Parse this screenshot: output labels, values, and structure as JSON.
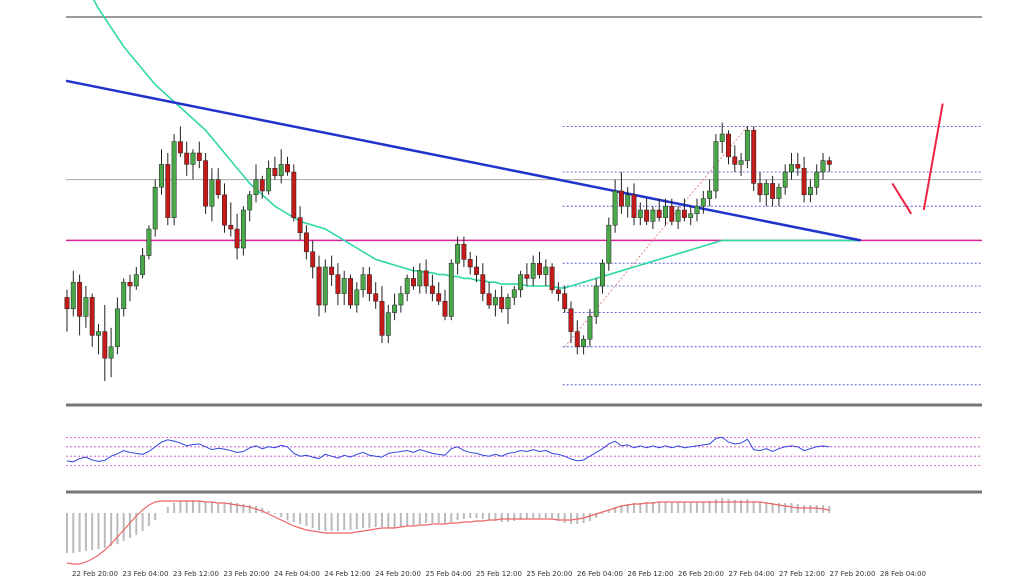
{
  "chart_data": {
    "type": "candlestick",
    "x_tick_labels": [
      "22 Feb 20:00",
      "23 Feb 04:00",
      "23 Feb 12:00",
      "23 Feb 20:00",
      "24 Feb 04:00",
      "24 Feb 12:00",
      "24 Feb 20:00",
      "25 Feb 04:00",
      "25 Feb 12:00",
      "25 Feb 20:00",
      "26 Feb 04:00",
      "26 Feb 12:00",
      "26 Feb 20:00",
      "27 Feb 04:00",
      "27 Feb 12:00",
      "27 Feb 20:00",
      "28 Feb 04:00"
    ],
    "price_scale": {
      "ylim": [
        0,
        100
      ]
    },
    "candles": [
      {
        "o": 27,
        "h": 29,
        "l": 18,
        "c": 24
      },
      {
        "o": 24,
        "h": 34,
        "l": 22,
        "c": 31
      },
      {
        "o": 31,
        "h": 33,
        "l": 17,
        "c": 22
      },
      {
        "o": 22,
        "h": 30,
        "l": 19,
        "c": 27
      },
      {
        "o": 27,
        "h": 28,
        "l": 14,
        "c": 17
      },
      {
        "o": 17,
        "h": 20,
        "l": 12,
        "c": 18
      },
      {
        "o": 18,
        "h": 25,
        "l": 5,
        "c": 11
      },
      {
        "o": 11,
        "h": 19,
        "l": 6,
        "c": 14
      },
      {
        "o": 14,
        "h": 27,
        "l": 12,
        "c": 24
      },
      {
        "o": 24,
        "h": 32,
        "l": 22,
        "c": 31
      },
      {
        "o": 31,
        "h": 33,
        "l": 26,
        "c": 30
      },
      {
        "o": 30,
        "h": 35,
        "l": 29,
        "c": 33
      },
      {
        "o": 33,
        "h": 40,
        "l": 32,
        "c": 38
      },
      {
        "o": 38,
        "h": 46,
        "l": 37,
        "c": 45
      },
      {
        "o": 45,
        "h": 58,
        "l": 43,
        "c": 56
      },
      {
        "o": 56,
        "h": 66,
        "l": 54,
        "c": 62
      },
      {
        "o": 62,
        "h": 65,
        "l": 46,
        "c": 48
      },
      {
        "o": 48,
        "h": 70,
        "l": 46,
        "c": 68
      },
      {
        "o": 68,
        "h": 72,
        "l": 64,
        "c": 65
      },
      {
        "o": 65,
        "h": 68,
        "l": 59,
        "c": 62
      },
      {
        "o": 62,
        "h": 66,
        "l": 58,
        "c": 65
      },
      {
        "o": 65,
        "h": 68,
        "l": 61,
        "c": 63
      },
      {
        "o": 63,
        "h": 65,
        "l": 49,
        "c": 51
      },
      {
        "o": 51,
        "h": 61,
        "l": 47,
        "c": 58
      },
      {
        "o": 58,
        "h": 61,
        "l": 53,
        "c": 54
      },
      {
        "o": 54,
        "h": 57,
        "l": 44,
        "c": 46
      },
      {
        "o": 46,
        "h": 52,
        "l": 43,
        "c": 45
      },
      {
        "o": 45,
        "h": 49,
        "l": 37,
        "c": 40
      },
      {
        "o": 40,
        "h": 51,
        "l": 38,
        "c": 50
      },
      {
        "o": 50,
        "h": 55,
        "l": 47,
        "c": 54
      },
      {
        "o": 54,
        "h": 62,
        "l": 52,
        "c": 58
      },
      {
        "o": 58,
        "h": 59,
        "l": 53,
        "c": 55
      },
      {
        "o": 55,
        "h": 63,
        "l": 54,
        "c": 61
      },
      {
        "o": 61,
        "h": 64,
        "l": 58,
        "c": 59
      },
      {
        "o": 59,
        "h": 66,
        "l": 57,
        "c": 62
      },
      {
        "o": 62,
        "h": 64,
        "l": 59,
        "c": 60
      },
      {
        "o": 60,
        "h": 62,
        "l": 47,
        "c": 48
      },
      {
        "o": 48,
        "h": 51,
        "l": 42,
        "c": 44
      },
      {
        "o": 44,
        "h": 46,
        "l": 37,
        "c": 39
      },
      {
        "o": 39,
        "h": 42,
        "l": 32,
        "c": 35
      },
      {
        "o": 35,
        "h": 38,
        "l": 22,
        "c": 25
      },
      {
        "o": 25,
        "h": 37,
        "l": 23,
        "c": 35
      },
      {
        "o": 35,
        "h": 38,
        "l": 30,
        "c": 33
      },
      {
        "o": 33,
        "h": 36,
        "l": 25,
        "c": 28
      },
      {
        "o": 28,
        "h": 34,
        "l": 25,
        "c": 32
      },
      {
        "o": 32,
        "h": 33,
        "l": 24,
        "c": 25
      },
      {
        "o": 25,
        "h": 31,
        "l": 23,
        "c": 29
      },
      {
        "o": 29,
        "h": 35,
        "l": 27,
        "c": 33
      },
      {
        "o": 33,
        "h": 35,
        "l": 26,
        "c": 28
      },
      {
        "o": 28,
        "h": 31,
        "l": 24,
        "c": 26
      },
      {
        "o": 26,
        "h": 30,
        "l": 15,
        "c": 17
      },
      {
        "o": 17,
        "h": 25,
        "l": 15,
        "c": 23
      },
      {
        "o": 23,
        "h": 28,
        "l": 21,
        "c": 25
      },
      {
        "o": 25,
        "h": 30,
        "l": 23,
        "c": 28
      },
      {
        "o": 28,
        "h": 33,
        "l": 26,
        "c": 32
      },
      {
        "o": 32,
        "h": 35,
        "l": 29,
        "c": 30
      },
      {
        "o": 30,
        "h": 36,
        "l": 28,
        "c": 34
      },
      {
        "o": 34,
        "h": 37,
        "l": 28,
        "c": 30
      },
      {
        "o": 30,
        "h": 33,
        "l": 26,
        "c": 28
      },
      {
        "o": 28,
        "h": 31,
        "l": 25,
        "c": 26
      },
      {
        "o": 26,
        "h": 29,
        "l": 21,
        "c": 22
      },
      {
        "o": 22,
        "h": 37,
        "l": 21,
        "c": 36
      },
      {
        "o": 36,
        "h": 43,
        "l": 33,
        "c": 41
      },
      {
        "o": 41,
        "h": 43,
        "l": 35,
        "c": 37
      },
      {
        "o": 37,
        "h": 39,
        "l": 33,
        "c": 35
      },
      {
        "o": 35,
        "h": 38,
        "l": 31,
        "c": 33
      },
      {
        "o": 33,
        "h": 36,
        "l": 26,
        "c": 28
      },
      {
        "o": 28,
        "h": 31,
        "l": 24,
        "c": 25
      },
      {
        "o": 25,
        "h": 29,
        "l": 22,
        "c": 27
      },
      {
        "o": 27,
        "h": 30,
        "l": 23,
        "c": 24
      },
      {
        "o": 24,
        "h": 28,
        "l": 20,
        "c": 27
      },
      {
        "o": 27,
        "h": 30,
        "l": 25,
        "c": 29
      },
      {
        "o": 29,
        "h": 34,
        "l": 27,
        "c": 33
      },
      {
        "o": 33,
        "h": 36,
        "l": 30,
        "c": 32
      },
      {
        "o": 32,
        "h": 38,
        "l": 30,
        "c": 36
      },
      {
        "o": 36,
        "h": 39,
        "l": 32,
        "c": 33
      },
      {
        "o": 33,
        "h": 37,
        "l": 30,
        "c": 35
      },
      {
        "o": 35,
        "h": 36,
        "l": 28,
        "c": 29
      },
      {
        "o": 29,
        "h": 31,
        "l": 26,
        "c": 28
      },
      {
        "o": 28,
        "h": 30,
        "l": 23,
        "c": 24
      },
      {
        "o": 24,
        "h": 26,
        "l": 15,
        "c": 18
      },
      {
        "o": 18,
        "h": 21,
        "l": 12,
        "c": 14
      },
      {
        "o": 14,
        "h": 17,
        "l": 12,
        "c": 16
      },
      {
        "o": 16,
        "h": 24,
        "l": 14,
        "c": 22
      },
      {
        "o": 22,
        "h": 32,
        "l": 20,
        "c": 30
      },
      {
        "o": 30,
        "h": 37,
        "l": 28,
        "c": 36
      },
      {
        "o": 36,
        "h": 48,
        "l": 34,
        "c": 46
      },
      {
        "o": 46,
        "h": 58,
        "l": 44,
        "c": 55
      },
      {
        "o": 55,
        "h": 60,
        "l": 49,
        "c": 51
      },
      {
        "o": 51,
        "h": 56,
        "l": 48,
        "c": 54
      },
      {
        "o": 54,
        "h": 57,
        "l": 46,
        "c": 48
      },
      {
        "o": 48,
        "h": 52,
        "l": 46,
        "c": 50
      },
      {
        "o": 50,
        "h": 53,
        "l": 46,
        "c": 47
      },
      {
        "o": 47,
        "h": 51,
        "l": 45,
        "c": 50
      },
      {
        "o": 50,
        "h": 53,
        "l": 47,
        "c": 48
      },
      {
        "o": 48,
        "h": 53,
        "l": 46,
        "c": 51
      },
      {
        "o": 51,
        "h": 53,
        "l": 46,
        "c": 47
      },
      {
        "o": 47,
        "h": 51,
        "l": 45,
        "c": 50
      },
      {
        "o": 50,
        "h": 53,
        "l": 47,
        "c": 48
      },
      {
        "o": 48,
        "h": 51,
        "l": 46,
        "c": 49
      },
      {
        "o": 49,
        "h": 53,
        "l": 47,
        "c": 51
      },
      {
        "o": 51,
        "h": 55,
        "l": 49,
        "c": 53
      },
      {
        "o": 53,
        "h": 58,
        "l": 51,
        "c": 55
      },
      {
        "o": 55,
        "h": 70,
        "l": 53,
        "c": 68
      },
      {
        "o": 68,
        "h": 73,
        "l": 65,
        "c": 70
      },
      {
        "o": 70,
        "h": 71,
        "l": 62,
        "c": 64
      },
      {
        "o": 64,
        "h": 67,
        "l": 60,
        "c": 62
      },
      {
        "o": 62,
        "h": 65,
        "l": 59,
        "c": 63
      },
      {
        "o": 63,
        "h": 72,
        "l": 61,
        "c": 71
      },
      {
        "o": 71,
        "h": 72,
        "l": 55,
        "c": 57
      },
      {
        "o": 57,
        "h": 60,
        "l": 52,
        "c": 54
      },
      {
        "o": 54,
        "h": 58,
        "l": 51,
        "c": 57
      },
      {
        "o": 57,
        "h": 59,
        "l": 51,
        "c": 53
      },
      {
        "o": 53,
        "h": 57,
        "l": 51,
        "c": 56
      },
      {
        "o": 56,
        "h": 62,
        "l": 54,
        "c": 60
      },
      {
        "o": 60,
        "h": 65,
        "l": 58,
        "c": 62
      },
      {
        "o": 62,
        "h": 65,
        "l": 59,
        "c": 61
      },
      {
        "o": 61,
        "h": 64,
        "l": 52,
        "c": 54
      },
      {
        "o": 54,
        "h": 58,
        "l": 52,
        "c": 56
      },
      {
        "o": 56,
        "h": 62,
        "l": 54,
        "c": 60
      },
      {
        "o": 60,
        "h": 65,
        "l": 58,
        "c": 63
      },
      {
        "o": 63,
        "h": 64,
        "l": 60,
        "c": 62
      }
    ],
    "trendline_blue": {
      "from": {
        "index": 0,
        "value": 84
      },
      "to": {
        "index": 126,
        "value": 42
      },
      "color": "#2233cc"
    },
    "horizontal_line_magenta": {
      "value": 42,
      "color": "#dd2299"
    },
    "horizontal_line_gray": {
      "value": 58,
      "color": "#aaaaaa"
    },
    "fib_dotted_levels": {
      "start_index": 79,
      "values": [
        72,
        60,
        51,
        36,
        30,
        23,
        14,
        4
      ],
      "color": "#3344cc"
    },
    "fib_connector_dotted": {
      "from": {
        "index": 79,
        "value": 14
      },
      "to": {
        "index": 108,
        "value": 72
      },
      "color": "#e08a8a"
    },
    "moving_average": {
      "color": "#30d8a8",
      "values": [
        118,
        115,
        112,
        109,
        106,
        103,
        100.5,
        98,
        95.5,
        93,
        91,
        89,
        87,
        85,
        83,
        81.5,
        80,
        78.5,
        77,
        75.5,
        74,
        72.5,
        71,
        69,
        67,
        65,
        63,
        61,
        59,
        57,
        55.5,
        54,
        52.5,
        51,
        50,
        49,
        48,
        47,
        46.5,
        46,
        45.5,
        45,
        44,
        43,
        42,
        41,
        40,
        39,
        38,
        37,
        36.5,
        36,
        35.5,
        35,
        34.5,
        34,
        34,
        33.5,
        33.5,
        33,
        33,
        32.5,
        32.5,
        32,
        32,
        31.5,
        31.5,
        31,
        31,
        30.5,
        30.5,
        30.5,
        30.5,
        30,
        30,
        30,
        30,
        30,
        29.5,
        29.5,
        30,
        30.5,
        31,
        31.5,
        32,
        32.5,
        33,
        33.5,
        34,
        34.5,
        35,
        35.5,
        36,
        36.5,
        37,
        37.5,
        38,
        38.5,
        39,
        39.5,
        40,
        40.5,
        41,
        41.5,
        42,
        42,
        42,
        42,
        42,
        42,
        42,
        42,
        42,
        42,
        42,
        42,
        42,
        42,
        42,
        42,
        42,
        42,
        42,
        42,
        42,
        42,
        42
      ]
    },
    "projection_lines": {
      "color": "#ee2244",
      "segments": [
        [
          {
            "index": 131,
            "value": 57
          },
          {
            "index": 134,
            "value": 49
          }
        ],
        [
          {
            "index": 136,
            "value": 50
          },
          {
            "index": 139,
            "value": 78
          }
        ]
      ]
    },
    "rsi": {
      "ylim": [
        0,
        100
      ],
      "dotted_levels": [
        80,
        60,
        40,
        20
      ],
      "level_color": "#cc44cc",
      "line_color": "#3344dd",
      "values": [
        30,
        28,
        35,
        38,
        32,
        29,
        31,
        40,
        45,
        52,
        48,
        46,
        44,
        50,
        60,
        70,
        75,
        72,
        68,
        62,
        65,
        66,
        60,
        54,
        57,
        55,
        52,
        48,
        50,
        58,
        62,
        56,
        60,
        58,
        63,
        60,
        46,
        40,
        42,
        38,
        35,
        44,
        40,
        36,
        42,
        38,
        44,
        48,
        42,
        40,
        38,
        46,
        48,
        50,
        52,
        48,
        54,
        50,
        46,
        44,
        42,
        56,
        60,
        52,
        48,
        46,
        42,
        40,
        44,
        40,
        46,
        48,
        52,
        50,
        54,
        50,
        52,
        46,
        44,
        40,
        34,
        30,
        32,
        40,
        48,
        56,
        66,
        72,
        62,
        64,
        58,
        62,
        58,
        62,
        58,
        62,
        58,
        62,
        58,
        60,
        62,
        64,
        66,
        78,
        80,
        70,
        66,
        68,
        76,
        54,
        52,
        56,
        50,
        56,
        60,
        62,
        60,
        52,
        56,
        60,
        62,
        60
      ]
    },
    "macd": {
      "ylim": [
        -100,
        100
      ],
      "histogram_color": "#bbbbbb",
      "signal_color": "#ee6666",
      "histogram": [
        -80,
        -80,
        -78,
        -76,
        -74,
        -72,
        -70,
        -66,
        -62,
        -56,
        -50,
        -44,
        -36,
        -26,
        -14,
        0,
        12,
        20,
        24,
        26,
        26,
        24,
        22,
        22,
        20,
        20,
        22,
        20,
        18,
        16,
        14,
        10,
        4,
        -2,
        -8,
        -14,
        -18,
        -22,
        -26,
        -30,
        -34,
        -36,
        -36,
        -36,
        -34,
        -34,
        -32,
        -30,
        -30,
        -28,
        -28,
        -30,
        -30,
        -28,
        -26,
        -24,
        -22,
        -20,
        -20,
        -20,
        -20,
        -18,
        -14,
        -12,
        -10,
        -10,
        -12,
        -14,
        -16,
        -18,
        -18,
        -16,
        -14,
        -12,
        -10,
        -10,
        -10,
        -12,
        -16,
        -20,
        -22,
        -22,
        -20,
        -16,
        -10,
        -2,
        6,
        12,
        16,
        18,
        20,
        20,
        22,
        22,
        22,
        22,
        22,
        22,
        22,
        22,
        22,
        22,
        24,
        28,
        30,
        28,
        26,
        26,
        28,
        24,
        22,
        22,
        20,
        20,
        20,
        20,
        18,
        16,
        16,
        16,
        16,
        14
      ],
      "signal": [
        -100,
        -102,
        -102,
        -98,
        -92,
        -84,
        -74,
        -62,
        -48,
        -34,
        -20,
        -6,
        6,
        16,
        22,
        24,
        24,
        24,
        24,
        24,
        24,
        24,
        22,
        22,
        20,
        20,
        18,
        16,
        14,
        12,
        8,
        4,
        -2,
        -8,
        -14,
        -20,
        -26,
        -30,
        -34,
        -36,
        -38,
        -40,
        -40,
        -40,
        -40,
        -40,
        -38,
        -36,
        -34,
        -32,
        -30,
        -30,
        -30,
        -28,
        -26,
        -26,
        -24,
        -24,
        -22,
        -22,
        -22,
        -20,
        -20,
        -18,
        -18,
        -16,
        -16,
        -14,
        -14,
        -12,
        -12,
        -12,
        -12,
        -12,
        -12,
        -12,
        -12,
        -12,
        -14,
        -14,
        -14,
        -12,
        -10,
        -6,
        -2,
        2,
        6,
        10,
        14,
        16,
        18,
        18,
        20,
        20,
        22,
        22,
        22,
        22,
        22,
        22,
        22,
        22,
        22,
        22,
        22,
        22,
        22,
        22,
        22,
        22,
        22,
        20,
        18,
        16,
        14,
        12,
        10,
        10,
        10,
        10,
        8,
        6
      ]
    }
  }
}
